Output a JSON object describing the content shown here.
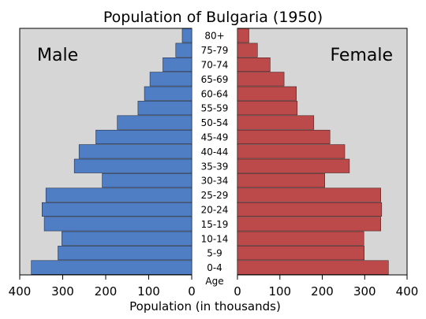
{
  "chart_data": {
    "type": "bar",
    "title": "Population of Bulgaria (1950)",
    "xlabel": "Population (in thousands)",
    "center_axis_label": "Age",
    "male_label": "Male",
    "female_label": "Female",
    "colors": {
      "male": "#4f7ec4",
      "female": "#bd4a4a",
      "panel": "#d6d6d6",
      "border": "#000000"
    },
    "xlim": [
      0,
      400
    ],
    "x_ticks": [
      "400",
      "300",
      "200",
      "100",
      "0",
      "0",
      "100",
      "200",
      "300",
      "400"
    ],
    "categories": [
      "80+",
      "75-79",
      "70-74",
      "65-69",
      "60-64",
      "55-59",
      "50-54",
      "45-49",
      "40-44",
      "35-39",
      "30-34",
      "25-29",
      "20-24",
      "15-19",
      "10-14",
      "5-9",
      "0-4"
    ],
    "series": [
      {
        "name": "Male",
        "values": [
          22,
          37,
          67,
          97,
          110,
          125,
          173,
          223,
          262,
          273,
          208,
          339,
          348,
          343,
          302,
          311,
          373
        ]
      },
      {
        "name": "Female",
        "values": [
          27,
          47,
          77,
          110,
          139,
          141,
          180,
          218,
          253,
          264,
          206,
          338,
          340,
          338,
          298,
          299,
          356
        ]
      }
    ],
    "grid": false
  }
}
